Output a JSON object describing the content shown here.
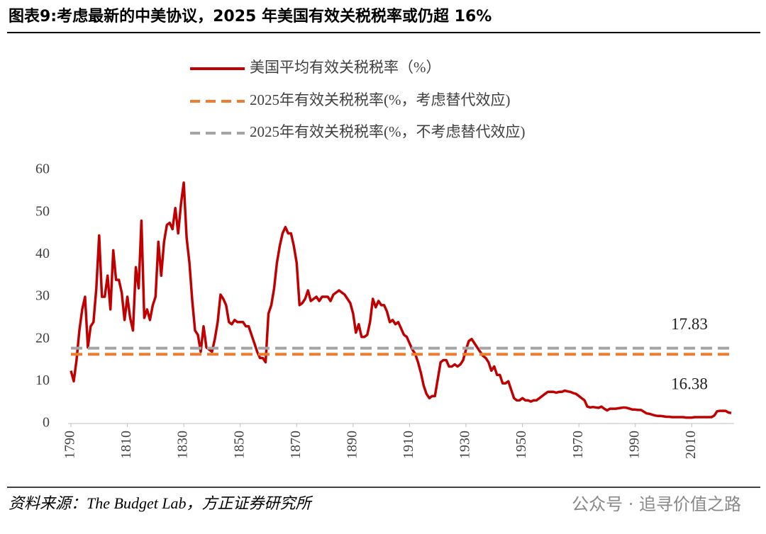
{
  "chart_data": {
    "type": "line",
    "title": "图表9:考虑最新的中美协议，2025 年美国有效关税税率或仍超 16%",
    "source": "资料来源：The Budget Lab，方正证券研究所",
    "watermark": "公众号 · 追寻价值之路",
    "x": [
      1790,
      1791,
      1792,
      1793,
      1794,
      1795,
      1796,
      1797,
      1798,
      1799,
      1800,
      1801,
      1802,
      1803,
      1804,
      1805,
      1806,
      1807,
      1808,
      1809,
      1810,
      1811,
      1812,
      1813,
      1814,
      1815,
      1816,
      1817,
      1818,
      1819,
      1820,
      1821,
      1822,
      1823,
      1824,
      1825,
      1826,
      1827,
      1828,
      1829,
      1830,
      1831,
      1832,
      1833,
      1834,
      1835,
      1836,
      1837,
      1838,
      1839,
      1840,
      1841,
      1842,
      1843,
      1844,
      1845,
      1846,
      1847,
      1848,
      1849,
      1850,
      1851,
      1852,
      1853,
      1854,
      1855,
      1856,
      1857,
      1858,
      1859,
      1860,
      1861,
      1862,
      1863,
      1864,
      1865,
      1866,
      1867,
      1868,
      1869,
      1870,
      1871,
      1872,
      1873,
      1874,
      1875,
      1876,
      1877,
      1878,
      1879,
      1880,
      1881,
      1882,
      1883,
      1884,
      1885,
      1886,
      1887,
      1888,
      1889,
      1890,
      1891,
      1892,
      1893,
      1894,
      1895,
      1896,
      1897,
      1898,
      1899,
      1900,
      1901,
      1902,
      1903,
      1904,
      1905,
      1906,
      1907,
      1908,
      1909,
      1910,
      1911,
      1912,
      1913,
      1914,
      1915,
      1916,
      1917,
      1918,
      1919,
      1920,
      1921,
      1922,
      1923,
      1924,
      1925,
      1926,
      1927,
      1928,
      1929,
      1930,
      1931,
      1932,
      1933,
      1934,
      1935,
      1936,
      1937,
      1938,
      1939,
      1940,
      1941,
      1942,
      1943,
      1944,
      1945,
      1946,
      1947,
      1948,
      1949,
      1950,
      1951,
      1952,
      1953,
      1954,
      1955,
      1956,
      1957,
      1958,
      1959,
      1960,
      1961,
      1962,
      1963,
      1964,
      1965,
      1966,
      1967,
      1968,
      1969,
      1970,
      1971,
      1972,
      1973,
      1974,
      1975,
      1976,
      1977,
      1978,
      1979,
      1980,
      1981,
      1982,
      1983,
      1984,
      1985,
      1986,
      1987,
      1988,
      1989,
      1990,
      1991,
      1992,
      1993,
      1994,
      1995,
      1996,
      1997,
      1998,
      1999,
      2000,
      2001,
      2002,
      2003,
      2004,
      2005,
      2006,
      2007,
      2008,
      2009,
      2010,
      2011,
      2012,
      2013,
      2014,
      2015,
      2016,
      2017,
      2018,
      2019,
      2020,
      2021,
      2022,
      2023,
      2024
    ],
    "series": [
      {
        "name": "美国平均有效关税税率（%）",
        "color": "#c00000",
        "values": [
          12.5,
          10,
          15,
          22,
          27,
          30,
          18,
          23,
          24,
          32,
          44.5,
          30,
          30,
          35,
          27,
          41,
          34,
          34,
          31,
          24.5,
          30,
          25,
          22,
          37,
          32,
          48,
          25,
          27,
          24.5,
          28,
          30,
          43,
          35,
          43,
          47,
          47.5,
          46,
          51,
          45,
          52,
          57,
          44,
          38,
          29,
          22,
          21,
          17,
          23,
          18,
          17.5,
          17,
          20,
          24,
          30.5,
          29.5,
          28,
          24,
          23.5,
          24.5,
          24,
          24,
          24,
          23,
          23,
          21,
          19,
          17,
          15.5,
          15.5,
          14.5,
          26,
          28,
          32,
          38,
          42,
          45,
          46.5,
          45,
          45,
          42,
          38,
          28,
          28.5,
          29.5,
          31.5,
          29,
          29.5,
          30,
          29,
          30,
          30,
          30,
          29,
          30.5,
          31,
          31.5,
          31,
          30.5,
          29.5,
          28.5,
          26,
          21.5,
          23.5,
          20.5,
          20.5,
          21,
          24,
          29.5,
          27.5,
          29,
          28,
          28,
          26.5,
          24,
          24.5,
          23.5,
          24,
          22.5,
          21,
          20.5,
          19,
          17.5,
          16.5,
          14.5,
          12,
          9,
          7,
          6,
          6.5,
          6.5,
          10.5,
          14.5,
          15,
          15,
          13.5,
          13.5,
          14,
          13.5,
          14,
          15,
          17.5,
          19.5,
          20,
          19,
          18,
          17,
          16,
          15.5,
          14.5,
          12.5,
          13.5,
          11.5,
          11.5,
          9.5,
          9.5,
          10,
          8,
          6,
          5.5,
          5.5,
          6,
          5.5,
          5.5,
          5.2,
          5.5,
          5.5,
          6,
          6.5,
          7,
          7.5,
          7.5,
          7.5,
          7.3,
          7.5,
          7.5,
          7.8,
          7.6,
          7.5,
          7.2,
          7,
          6.5,
          6,
          5.5,
          4,
          3.8,
          3.9,
          3.8,
          3.7,
          4,
          3.5,
          3.1,
          3.5,
          3.5,
          3.5,
          3.6,
          3.7,
          3.8,
          3.7,
          3.5,
          3.3,
          3.3,
          3.2,
          3.2,
          2.8,
          2.4,
          2.3,
          2.1,
          1.9,
          1.8,
          1.8,
          1.7,
          1.6,
          1.6,
          1.5,
          1.5,
          1.5,
          1.5,
          1.5,
          1.4,
          1.4,
          1.4,
          1.5,
          1.5,
          1.5,
          1.5,
          1.5,
          1.5,
          1.5,
          1.9,
          2.9,
          3,
          3,
          3,
          2.6,
          2.5
        ]
      },
      {
        "name": "2025年有效关税税率(%，考虑替代效应)",
        "color": "#ed7d31",
        "value": 16.38
      },
      {
        "name": "2025年有效关税税率(%，不考虑替代效应)",
        "color": "#a5a5a5",
        "value": 17.83
      }
    ],
    "xlim": [
      1789,
      2025
    ],
    "xticks": [
      1790,
      1810,
      1830,
      1850,
      1870,
      1890,
      1910,
      1930,
      1950,
      1970,
      1990,
      2010
    ],
    "ylim": [
      0,
      60
    ],
    "yticks": [
      0,
      10,
      20,
      30,
      40,
      50,
      60
    ]
  }
}
